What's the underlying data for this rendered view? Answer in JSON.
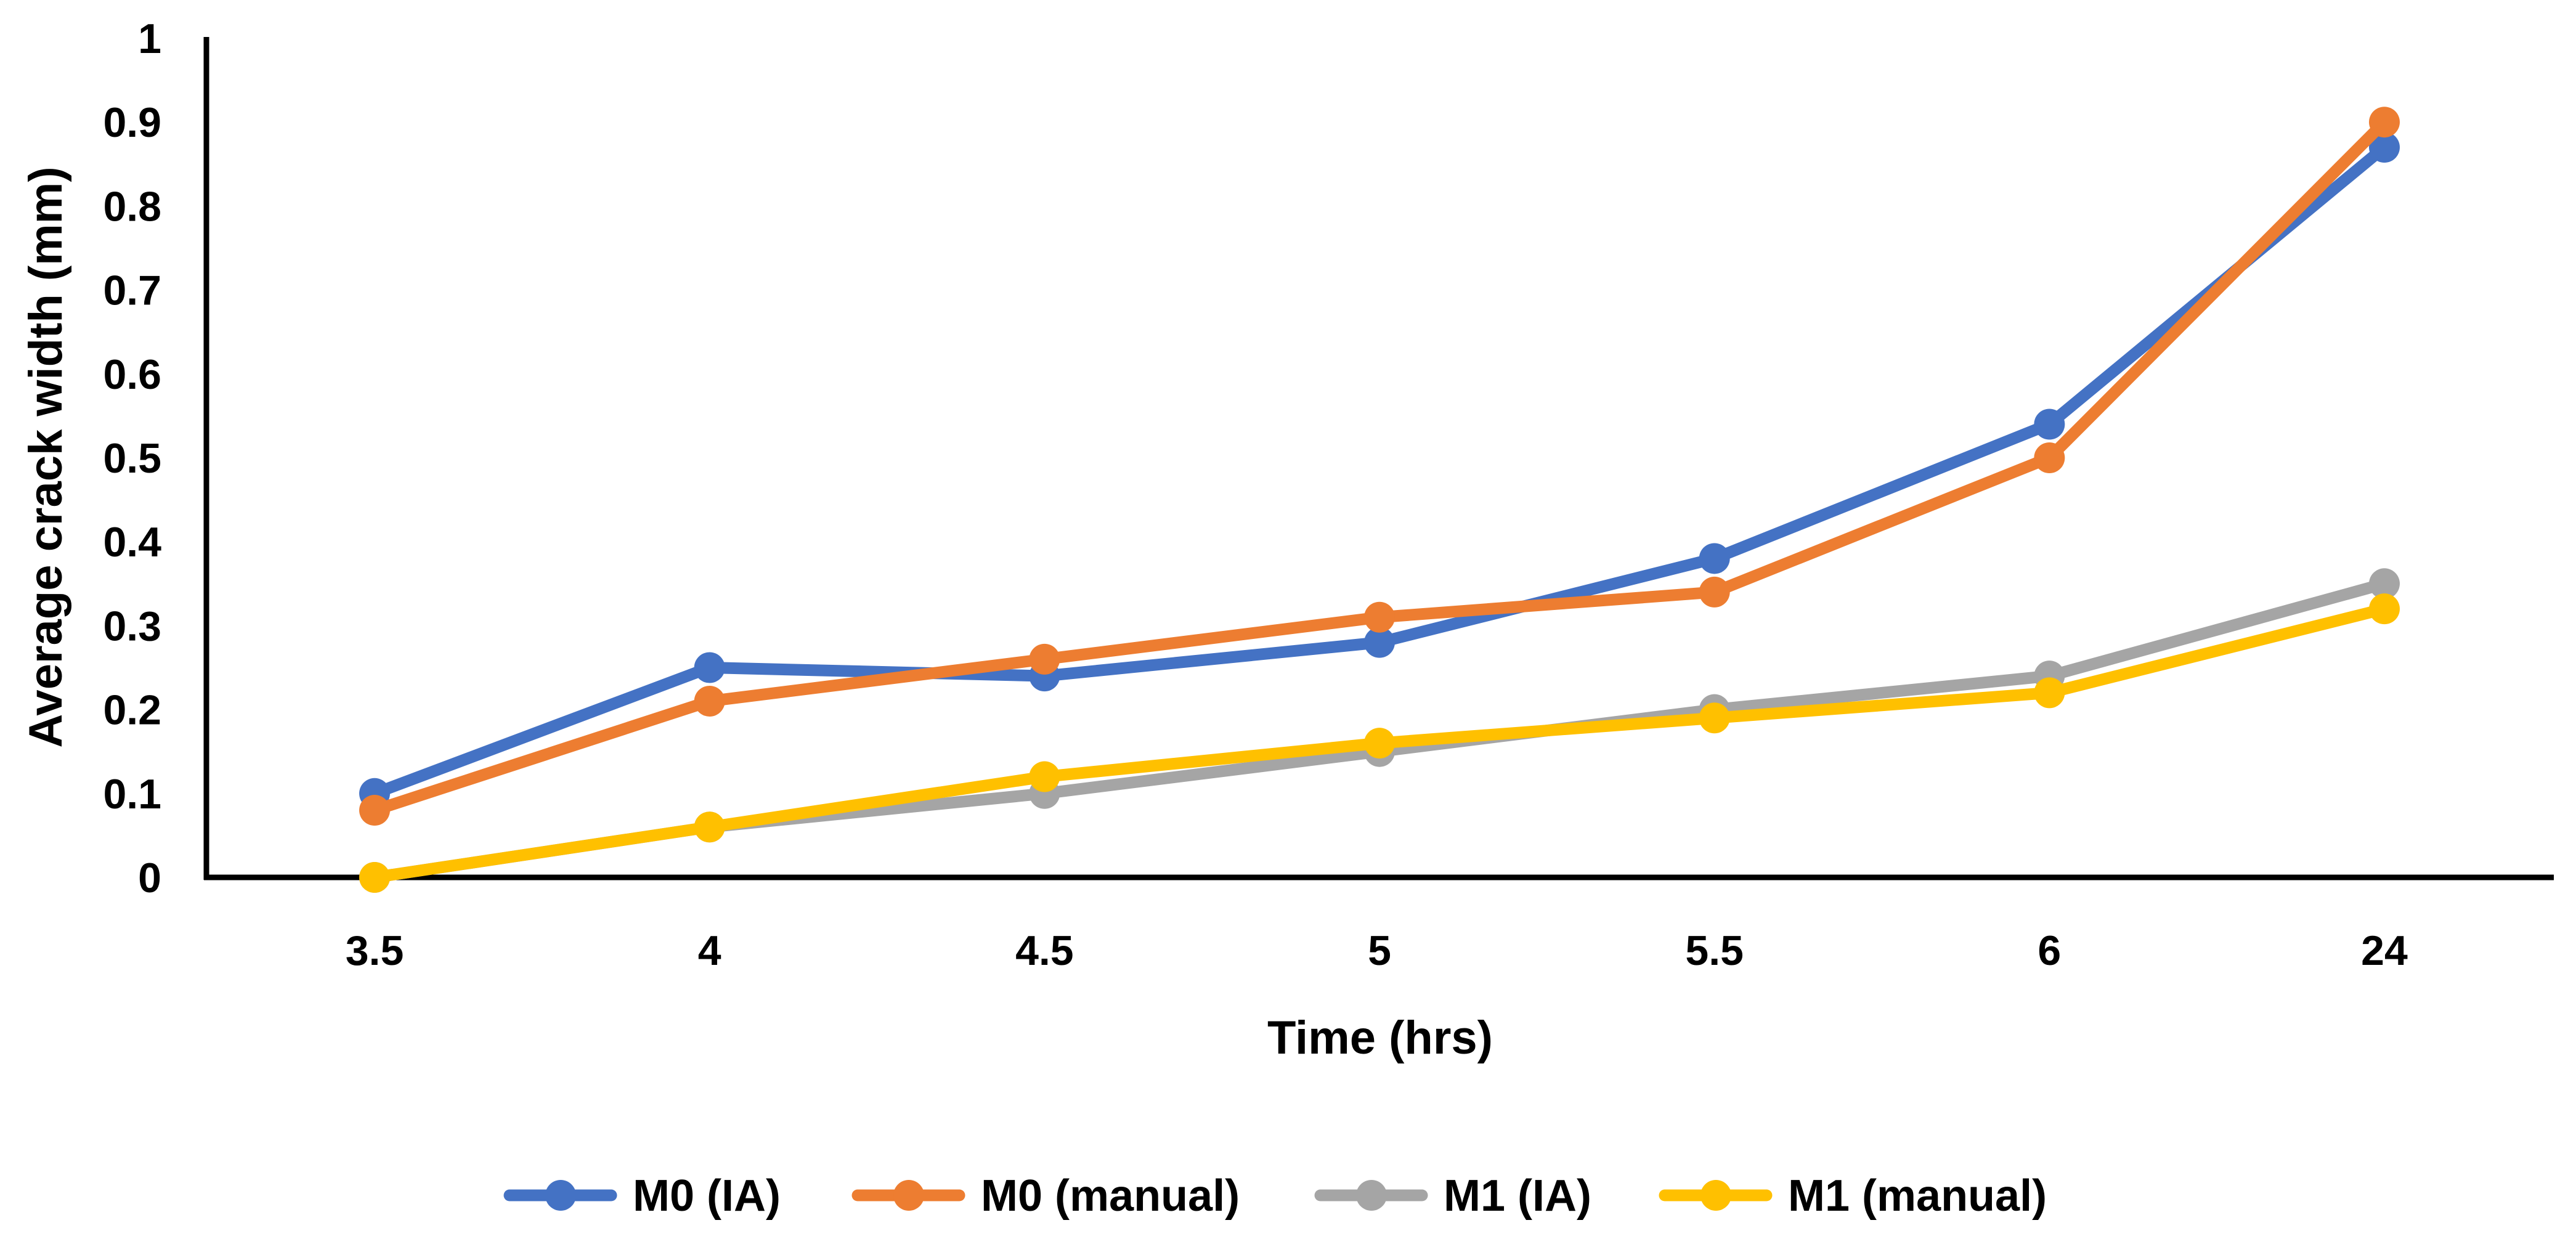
{
  "chart_data": {
    "type": "line",
    "title": "",
    "xlabel": "Time (hrs)",
    "ylabel": "Average crack width (mm)",
    "categories": [
      "3.5",
      "4",
      "4.5",
      "5",
      "5.5",
      "6",
      "24"
    ],
    "yticks": [
      "0",
      "0.1",
      "0.2",
      "0.3",
      "0.4",
      "0.5",
      "0.6",
      "0.7",
      "0.8",
      "0.9",
      "1"
    ],
    "ylim": [
      0,
      1
    ],
    "grid": false,
    "legend_position": "bottom",
    "series": [
      {
        "name": "M0 (IA)",
        "color": "#4472C4",
        "values": [
          0.1,
          0.25,
          0.24,
          0.28,
          0.38,
          0.54,
          0.87
        ]
      },
      {
        "name": "M0 (manual)",
        "color": "#ED7D31",
        "values": [
          0.08,
          0.21,
          0.26,
          0.31,
          0.34,
          0.5,
          0.9
        ]
      },
      {
        "name": "M1 (IA)",
        "color": "#A5A5A5",
        "values": [
          0.0,
          0.06,
          0.1,
          0.15,
          0.2,
          0.24,
          0.35
        ]
      },
      {
        "name": "M1 (manual)",
        "color": "#FFC000",
        "values": [
          0.0,
          0.06,
          0.12,
          0.16,
          0.19,
          0.22,
          0.32
        ]
      }
    ]
  }
}
